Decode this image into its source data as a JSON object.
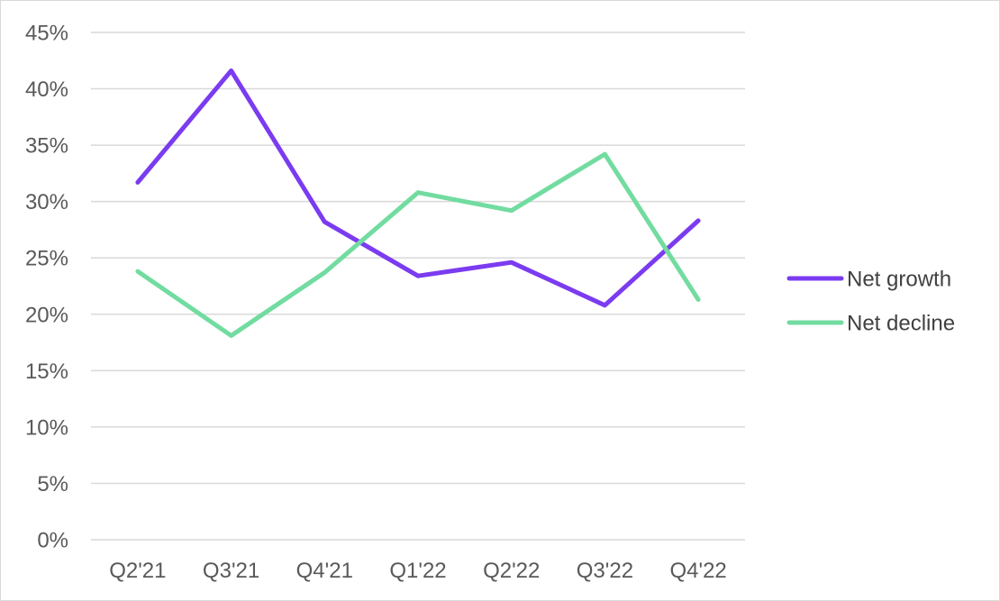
{
  "chart_data": {
    "type": "line",
    "categories": [
      "Q2'21",
      "Q3'21",
      "Q4'21",
      "Q1'22",
      "Q2'22",
      "Q3'22",
      "Q4'22"
    ],
    "series": [
      {
        "name": "Net growth",
        "color": "#7b3bf0",
        "values": [
          31.7,
          41.6,
          28.2,
          23.4,
          24.6,
          20.8,
          28.3
        ]
      },
      {
        "name": "Net decline",
        "color": "#72dca0",
        "values": [
          23.8,
          18.1,
          23.7,
          30.8,
          29.2,
          34.2,
          21.3
        ]
      }
    ],
    "ylim": [
      0,
      45
    ],
    "yticks": [
      "0%",
      "5%",
      "10%",
      "15%",
      "20%",
      "25%",
      "30%",
      "35%",
      "40%",
      "45%"
    ],
    "ytick_values": [
      0,
      5,
      10,
      15,
      20,
      25,
      30,
      35,
      40,
      45
    ],
    "grid": true,
    "legend_position": "right"
  }
}
